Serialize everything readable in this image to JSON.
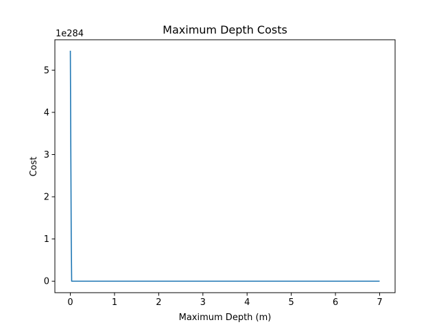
{
  "chart_data": {
    "type": "line",
    "title": "Maximum Depth Costs",
    "xlabel": "Maximum Depth (m)",
    "ylabel": "Cost",
    "y_offset_label": "1e284",
    "xlim": [
      -0.35,
      7.35
    ],
    "ylim": [
      -0.272,
      5.72
    ],
    "x_ticks": [
      0,
      1,
      2,
      3,
      4,
      5,
      6,
      7
    ],
    "x_tick_labels": [
      "0",
      "1",
      "2",
      "3",
      "4",
      "5",
      "6",
      "7"
    ],
    "y_ticks": [
      0,
      1,
      2,
      3,
      4,
      5
    ],
    "y_tick_labels": [
      "0",
      "1",
      "2",
      "3",
      "4",
      "5"
    ],
    "grid": false,
    "series": [
      {
        "color": "#1f77b4",
        "x": [
          0.0,
          0.02,
          0.03,
          0.5,
          1,
          2,
          3,
          4,
          5,
          6,
          7
        ],
        "y": [
          5.46,
          1.1,
          0.0,
          0.0,
          0.0,
          0.0,
          0.0,
          0.0,
          0.0,
          0.0,
          0.0
        ]
      }
    ]
  }
}
